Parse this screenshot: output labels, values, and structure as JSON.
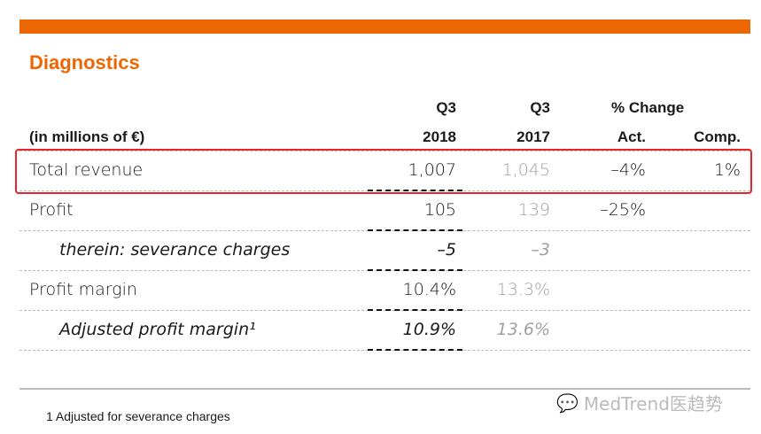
{
  "title": "Diagnostics",
  "header": {
    "unit": "(in millions of €)",
    "c1_top": "Q3",
    "c1": "2018",
    "c2_top": "Q3",
    "c2": "2017",
    "c34_top": "% Change",
    "c3": "Act.",
    "c4": "Comp."
  },
  "rows": [
    {
      "label": "Total revenue",
      "v2018": "1,007",
      "v2017": "1,045",
      "act": "–4%",
      "comp": "1%",
      "highlighted": true
    },
    {
      "label": "Profit",
      "v2018": "105",
      "v2017": "139",
      "act": "–25%",
      "comp": ""
    },
    {
      "label": "therein: severance charges",
      "v2018": "–5",
      "v2017": "–3",
      "act": "",
      "comp": "",
      "italic": true
    },
    {
      "label": "Profit margin",
      "v2018": "10.4%",
      "v2017": "13.3%",
      "act": "",
      "comp": ""
    },
    {
      "label": "Adjusted profit margin¹",
      "v2018": "10.9%",
      "v2017": "13.6%",
      "act": "",
      "comp": "",
      "italic": true
    }
  ],
  "footnote": "1 Adjusted for severance charges",
  "watermark": "MedTrend医趋势",
  "colors": {
    "accent": "#ec6602",
    "highlight": "#e8262a"
  }
}
